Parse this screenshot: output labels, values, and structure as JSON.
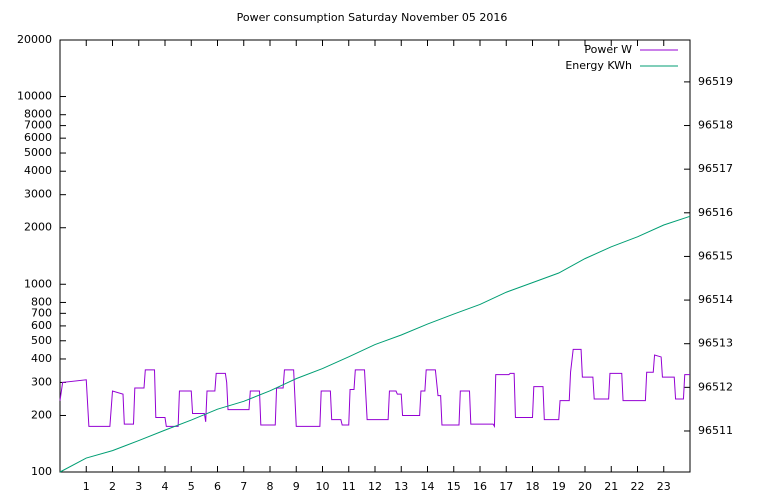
{
  "chart_data": {
    "type": "line",
    "title": "Power consumption Saturday November 05 2016",
    "xlim": [
      0,
      24
    ],
    "xticks": [
      1,
      2,
      3,
      4,
      5,
      6,
      7,
      8,
      9,
      10,
      11,
      12,
      13,
      14,
      15,
      16,
      17,
      18,
      19,
      20,
      21,
      22,
      23
    ],
    "ylim": [
      100,
      20000
    ],
    "log_y": true,
    "yticks": [
      100,
      200,
      300,
      400,
      500,
      600,
      700,
      800,
      1000,
      2000,
      3000,
      4000,
      5000,
      6000,
      7000,
      8000,
      10000,
      20000
    ],
    "y2lim": [
      96510.06,
      96519.96
    ],
    "y2ticks": [
      96511,
      96512,
      96513,
      96514,
      96515,
      96516,
      96517,
      96518,
      96519
    ],
    "legend": "top-right",
    "grid": false,
    "series": [
      {
        "name": "Power W",
        "color": "#9400d3",
        "x": [
          0,
          0.1,
          1.0,
          1.1,
          1.9,
          2.0,
          2.4,
          2.45,
          2.8,
          2.85,
          3.2,
          3.25,
          3.6,
          3.65,
          4.0,
          4.05,
          4.5,
          4.55,
          5.0,
          5.05,
          5.5,
          5.55,
          5.6,
          5.9,
          5.95,
          6.3,
          6.35,
          6.4,
          7.2,
          7.25,
          7.6,
          7.65,
          8.2,
          8.25,
          8.5,
          8.55,
          8.9,
          9.0,
          9.9,
          9.95,
          10.3,
          10.35,
          10.7,
          10.75,
          11.0,
          11.05,
          11.2,
          11.25,
          11.6,
          11.7,
          12.5,
          12.55,
          12.8,
          12.85,
          13.0,
          13.05,
          13.7,
          13.75,
          13.9,
          13.95,
          14.3,
          14.4,
          14.5,
          14.55,
          15.2,
          15.25,
          15.6,
          15.65,
          16.5,
          16.55,
          16.6,
          17.1,
          17.15,
          17.3,
          17.35,
          18.0,
          18.05,
          18.4,
          18.45,
          19.0,
          19.05,
          19.4,
          19.45,
          19.55,
          19.85,
          19.9,
          20.3,
          20.35,
          20.9,
          20.95,
          21.4,
          21.45,
          22.3,
          22.35,
          22.6,
          22.65,
          22.9,
          22.95,
          23.4,
          23.45,
          23.75,
          23.8,
          24
        ],
        "values": [
          240,
          300,
          310,
          175,
          175,
          270,
          260,
          180,
          180,
          280,
          280,
          350,
          350,
          195,
          195,
          175,
          175,
          270,
          270,
          205,
          205,
          185,
          270,
          270,
          335,
          335,
          300,
          215,
          215,
          270,
          270,
          178,
          178,
          280,
          280,
          350,
          350,
          175,
          175,
          270,
          270,
          190,
          190,
          178,
          178,
          275,
          275,
          350,
          350,
          190,
          190,
          270,
          270,
          260,
          260,
          200,
          200,
          270,
          270,
          350,
          350,
          255,
          255,
          178,
          178,
          270,
          270,
          180,
          180,
          175,
          330,
          330,
          335,
          335,
          195,
          195,
          285,
          285,
          190,
          190,
          240,
          240,
          340,
          450,
          450,
          320,
          320,
          245,
          245,
          335,
          335,
          240,
          240,
          340,
          340,
          420,
          410,
          320,
          320,
          245,
          245,
          330,
          330
        ]
      },
      {
        "name": "Energy KWh",
        "color": "#009e73",
        "axis": "y2",
        "x": [
          0,
          1,
          2,
          3,
          4,
          5,
          6,
          7,
          8,
          9,
          10,
          11,
          12,
          13,
          14,
          15,
          16,
          17,
          18,
          19,
          20,
          21,
          22,
          23,
          24
        ],
        "values": [
          96510.06,
          96510.38,
          96510.55,
          96510.78,
          96511.02,
          96511.25,
          96511.5,
          96511.68,
          96511.92,
          96512.2,
          96512.43,
          96512.7,
          96512.98,
          96513.2,
          96513.45,
          96513.68,
          96513.9,
          96514.18,
          96514.4,
          96514.62,
          96514.95,
          96515.22,
          96515.45,
          96515.72,
          96515.92
        ]
      }
    ]
  }
}
